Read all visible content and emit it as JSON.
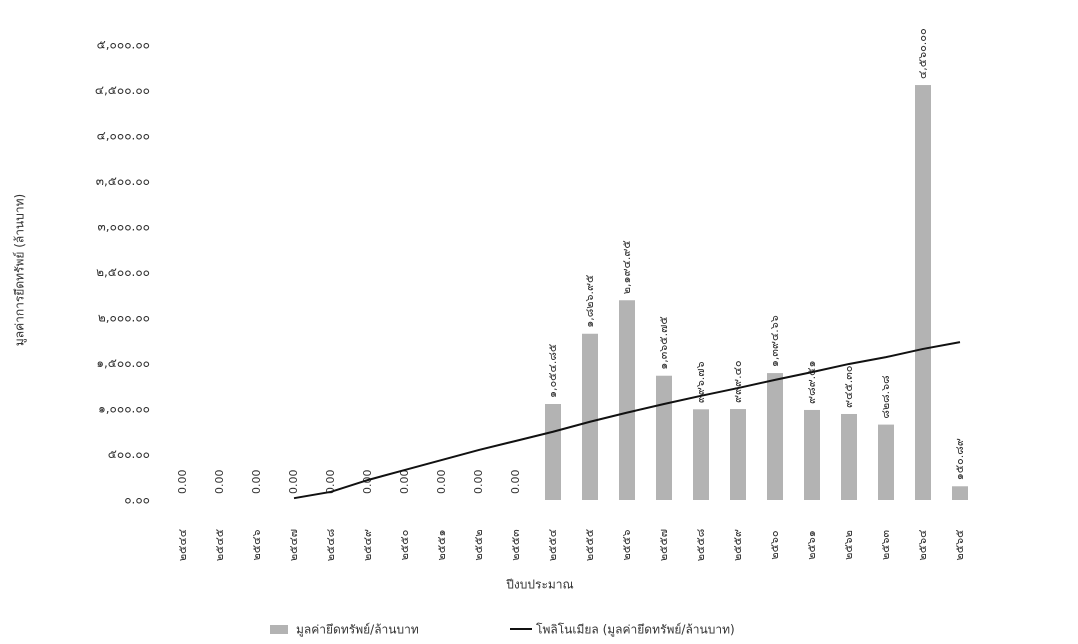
{
  "chart_data": {
    "type": "bar",
    "y_label": "มูลค่าการยึดทรัพย์ (ล้านบาท)",
    "x_label": "ปีงบประมาณ",
    "categories": [
      "๒๕๔๔",
      "๒๕๔๕",
      "๒๕๔๖",
      "๒๕๔๗",
      "๒๕๔๘",
      "๒๕๔๙",
      "๒๕๕๐",
      "๒๕๕๑",
      "๒๕๕๒",
      "๒๕๕๓",
      "๒๕๕๔",
      "๒๕๕๕",
      "๒๕๕๖",
      "๒๕๕๗",
      "๒๕๕๘",
      "๒๕๕๙",
      "๒๕๖๐",
      "๒๕๖๑",
      "๒๕๖๒",
      "๒๕๖๓",
      "๒๕๖๔",
      "๒๕๖๕"
    ],
    "series": [
      {
        "name": "มูลค่ายึดทรัพย์/ล้านบาท",
        "type": "bar",
        "color": "#b3b3b3",
        "values": [
          0,
          0,
          0,
          0,
          0,
          0,
          0,
          0,
          0,
          0,
          1054.85,
          1826.95,
          2194.95,
          1365.75,
          996.76,
          999.4,
          1394.66,
          989.51,
          945.3,
          828.68,
          4560,
          150.89
        ],
        "value_labels": [
          "0.00",
          "0.00",
          "0.00",
          "0.00",
          "0.00",
          "0.00",
          "0.00",
          "0.00",
          "0.00",
          "0.00",
          "๑,๐๕๔.๘๕",
          "๑,๘๒๖.๙๕",
          "๒,๑๙๔.๙๕",
          "๑,๓๖๕.๗๕",
          "๙๙๖.๗๖",
          "๙๙๙.๔๐",
          "๑,๓๙๔.๖๖",
          "๙๘๙.๕๑",
          "๙๔๕.๓๐",
          "๘๒๘.๖๘",
          "๔,๕๖๐.๐๐",
          "๑๕๐.๘๙"
        ]
      },
      {
        "name": "โพลิโนเมียล (มูลค่ายึดทรัพย์/ล้านบาท)",
        "type": "line",
        "color": "#111111",
        "values": [
          null,
          null,
          null,
          20,
          90,
          220,
          330,
          440,
          550,
          650,
          750,
          860,
          960,
          1055,
          1145,
          1230,
          1320,
          1405,
          1495,
          1570,
          1660,
          1735
        ]
      }
    ],
    "ylim": [
      0,
      5000
    ],
    "yticks": [
      {
        "value": 0,
        "label": "๐.๐๐"
      },
      {
        "value": 500,
        "label": "๕๐๐.๐๐"
      },
      {
        "value": 1000,
        "label": "๑,๐๐๐.๐๐"
      },
      {
        "value": 1500,
        "label": "๑,๕๐๐.๐๐"
      },
      {
        "value": 2000,
        "label": "๒,๐๐๐.๐๐"
      },
      {
        "value": 2500,
        "label": "๒,๕๐๐.๐๐"
      },
      {
        "value": 3000,
        "label": "๓,๐๐๐.๐๐"
      },
      {
        "value": 3500,
        "label": "๓,๕๐๐.๐๐"
      },
      {
        "value": 4000,
        "label": "๔,๐๐๐.๐๐"
      },
      {
        "value": 4500,
        "label": "๔,๕๐๐.๐๐"
      },
      {
        "value": 5000,
        "label": "๕,๐๐๐.๐๐"
      }
    ],
    "grid": false,
    "legend": "bottom"
  }
}
